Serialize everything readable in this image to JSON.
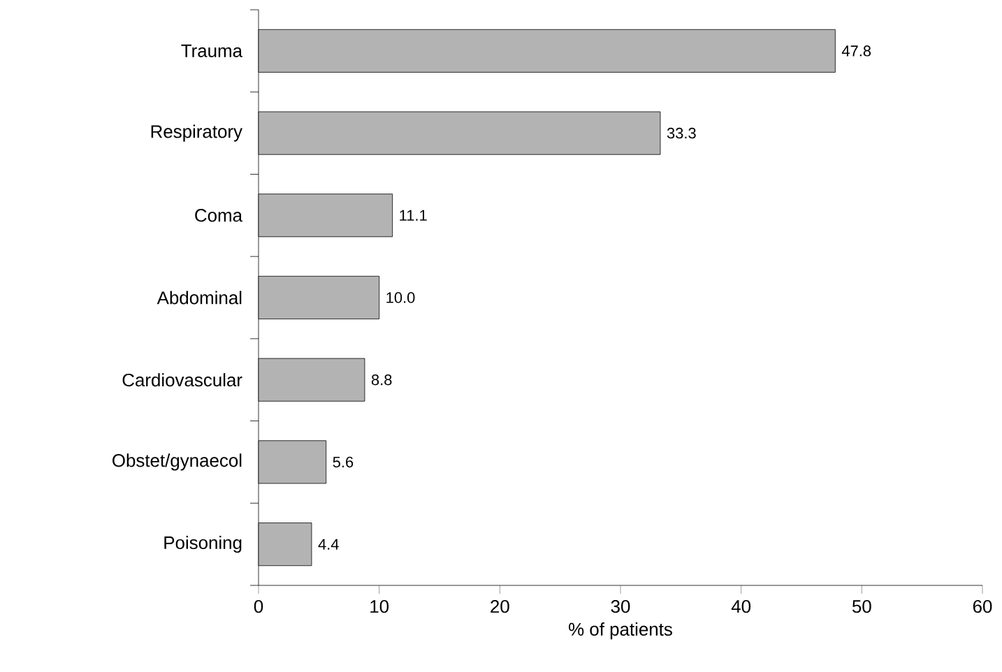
{
  "chart_data": {
    "type": "bar",
    "orientation": "horizontal",
    "xlabel": "% of patients",
    "categories": [
      "Trauma",
      "Respiratory",
      "Coma",
      "Abdominal",
      "Cardiovascular",
      "Obstet/gynaecol",
      "Poisoning"
    ],
    "values": [
      47.8,
      33.3,
      11.1,
      10.0,
      8.8,
      5.6,
      4.4
    ],
    "value_labels": [
      "47.8",
      "33.3",
      "11.1",
      "10.0",
      "8.8",
      "5.6",
      "4.4"
    ],
    "color": "#b3b3b3",
    "xlim": [
      0,
      60
    ],
    "xticks": [
      0,
      10,
      20,
      30,
      40,
      50,
      60
    ],
    "grid": false
  }
}
